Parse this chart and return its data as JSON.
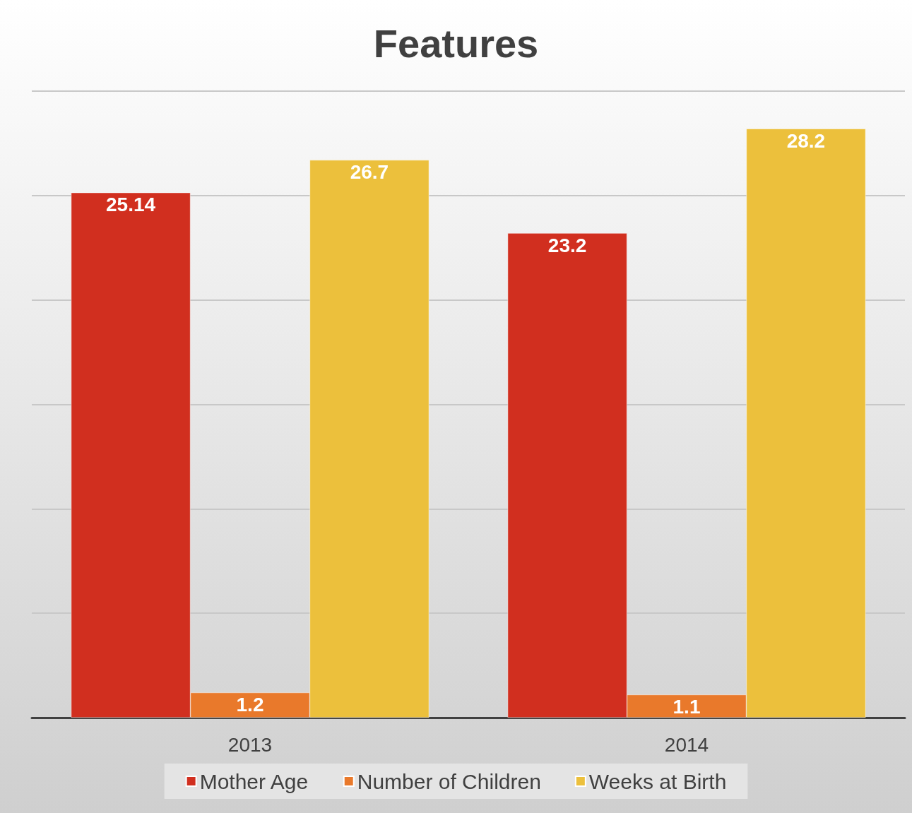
{
  "chart_data": {
    "type": "bar",
    "title": "Features",
    "categories": [
      "2013",
      "2014"
    ],
    "series": [
      {
        "name": "Mother Age",
        "color": "#d12f1f",
        "values": [
          25.14,
          23.2
        ]
      },
      {
        "name": "Number of Children",
        "color": "#e9792b",
        "values": [
          1.2,
          1.1
        ]
      },
      {
        "name": "Weeks at Birth",
        "color": "#ecc03c",
        "values": [
          26.7,
          28.2
        ]
      }
    ],
    "ylim": [
      0,
      30
    ],
    "yticks": [
      {
        "value": 0,
        "label": null
      },
      {
        "value": 5,
        "label": null
      },
      {
        "value": 10,
        "label": null
      },
      {
        "value": 15,
        "label": null
      },
      {
        "value": 20,
        "label": null
      },
      {
        "value": 25,
        "label": null
      },
      {
        "value": 30,
        "label": null
      }
    ],
    "tick_labels": "x",
    "grid": "y",
    "legend": "bottom",
    "data_labels": true
  }
}
